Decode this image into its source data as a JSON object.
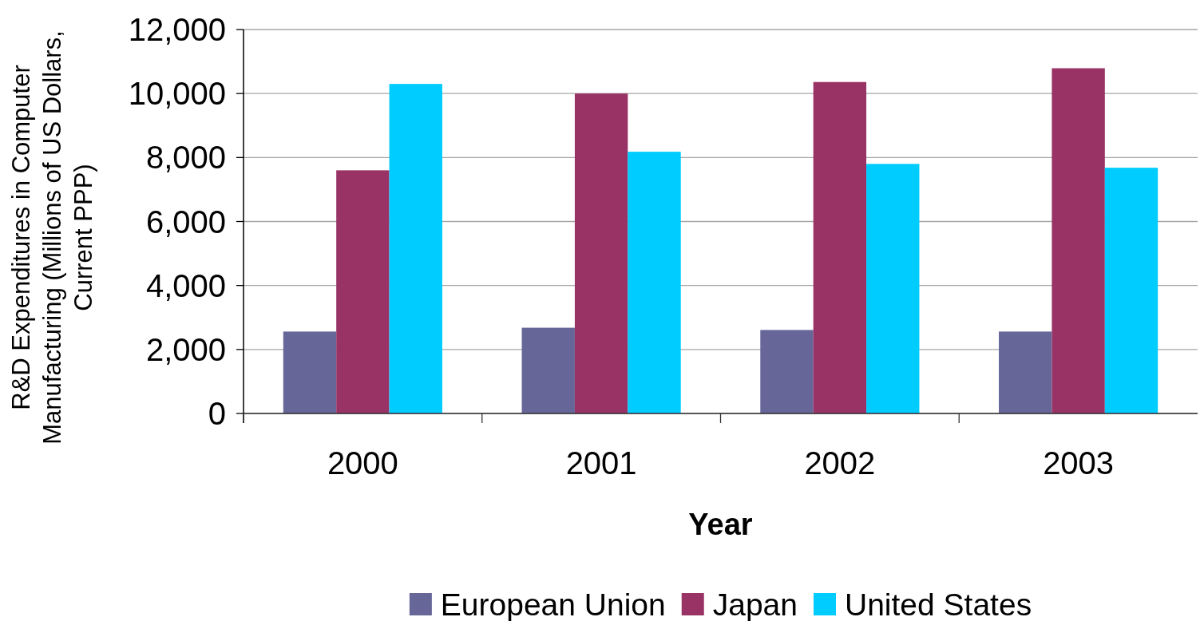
{
  "chart_data": {
    "type": "bar",
    "xlabel": "Year",
    "ylabel": "R&D Expenditures in Computer Manufacturing (Millions of US Dollars, Current PPP)",
    "categories": [
      "2000",
      "2001",
      "2002",
      "2003"
    ],
    "series": [
      {
        "name": "European Union",
        "color": "#666699",
        "values": [
          2560,
          2680,
          2610,
          2560
        ]
      },
      {
        "name": "Japan",
        "color": "#993366",
        "values": [
          7600,
          10000,
          10360,
          10790
        ]
      },
      {
        "name": "United States",
        "color": "#00ccff",
        "values": [
          10300,
          8180,
          7800,
          7680
        ]
      }
    ],
    "ylim": [
      0,
      12000
    ],
    "yticks": [
      0,
      {
        "value": 2000,
        "label": "2,000"
      },
      {
        "value": 4000,
        "label": "4,000"
      },
      {
        "value": 6000,
        "label": "6,000"
      },
      {
        "value": 8000,
        "label": "8,000"
      },
      {
        "value": 10000,
        "label": "10,000"
      },
      {
        "value": 12000,
        "label": "12,000"
      }
    ],
    "grid": "y",
    "legend": "bottom"
  }
}
